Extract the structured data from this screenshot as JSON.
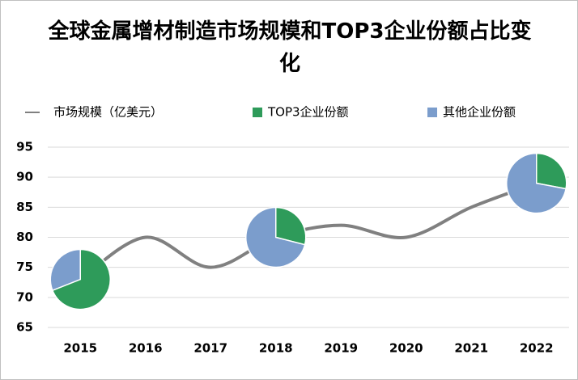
{
  "chart_data": {
    "type": "line-pie",
    "title": "全球金属增材制造市场规模和TOP3企业份额占比变化",
    "categories": [
      "2015",
      "2016",
      "2017",
      "2018",
      "2019",
      "2020",
      "2021",
      "2022"
    ],
    "series": [
      {
        "name": "市场规模（亿美元）",
        "type": "line",
        "color": "#808080",
        "values": [
          73,
          80,
          75,
          80,
          82,
          80,
          85,
          89
        ]
      },
      {
        "name": "TOP3企业份额",
        "type": "pie",
        "color": "#2e9b5a",
        "values": [
          69,
          null,
          null,
          29,
          null,
          null,
          null,
          28
        ]
      },
      {
        "name": "其他企业份额",
        "type": "pie",
        "color": "#7b9dcc",
        "values": [
          31,
          null,
          null,
          71,
          null,
          null,
          null,
          72
        ]
      }
    ],
    "ylim": [
      65,
      95
    ],
    "yticks": [
      65,
      70,
      75,
      80,
      85,
      90,
      95
    ],
    "grid": true
  }
}
